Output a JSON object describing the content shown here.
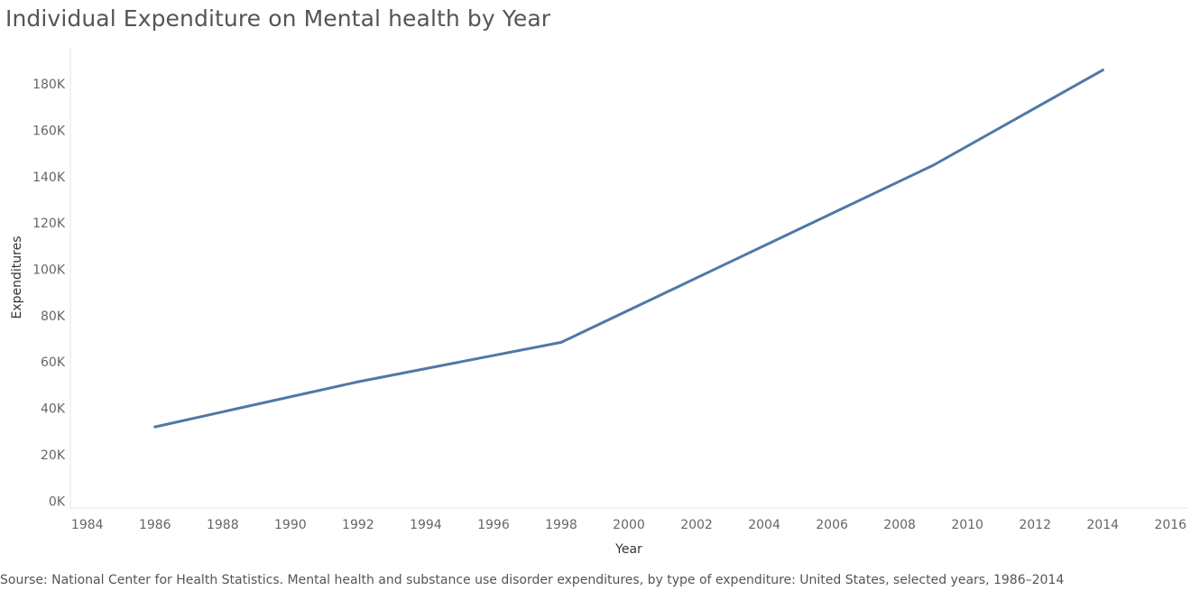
{
  "title": "Individual Expenditure on Mental health by Year",
  "source": "Sourse: National Center for Health Statistics. Mental health and substance use disorder expenditures, by type of expenditure: United States, selected years, 1986–2014",
  "colors": {
    "line": "#4e79a7",
    "axis": "#e6e6e6"
  },
  "chart_data": {
    "type": "line",
    "title": "Individual Expenditure on Mental health by Year",
    "xlabel": "Year",
    "ylabel": "Expenditures",
    "xlim": [
      1983.5,
      2016.5
    ],
    "ylim": [
      -3000,
      196000
    ],
    "x_ticks": [
      1984,
      1986,
      1988,
      1990,
      1992,
      1994,
      1996,
      1998,
      2000,
      2002,
      2004,
      2006,
      2008,
      2010,
      2012,
      2014,
      2016
    ],
    "y_ticks": [
      {
        "value": 0,
        "label": "0K"
      },
      {
        "value": 20000,
        "label": "20K"
      },
      {
        "value": 40000,
        "label": "40K"
      },
      {
        "value": 60000,
        "label": "60K"
      },
      {
        "value": 80000,
        "label": "80K"
      },
      {
        "value": 100000,
        "label": "100K"
      },
      {
        "value": 120000,
        "label": "120K"
      },
      {
        "value": 140000,
        "label": "140K"
      },
      {
        "value": 160000,
        "label": "160K"
      },
      {
        "value": 180000,
        "label": "180K"
      }
    ],
    "grid": false,
    "series": [
      {
        "x": [
          1986,
          1992,
          1998,
          2009,
          2014
        ],
        "values": [
          32000,
          51500,
          68500,
          145000,
          186000
        ]
      }
    ]
  }
}
